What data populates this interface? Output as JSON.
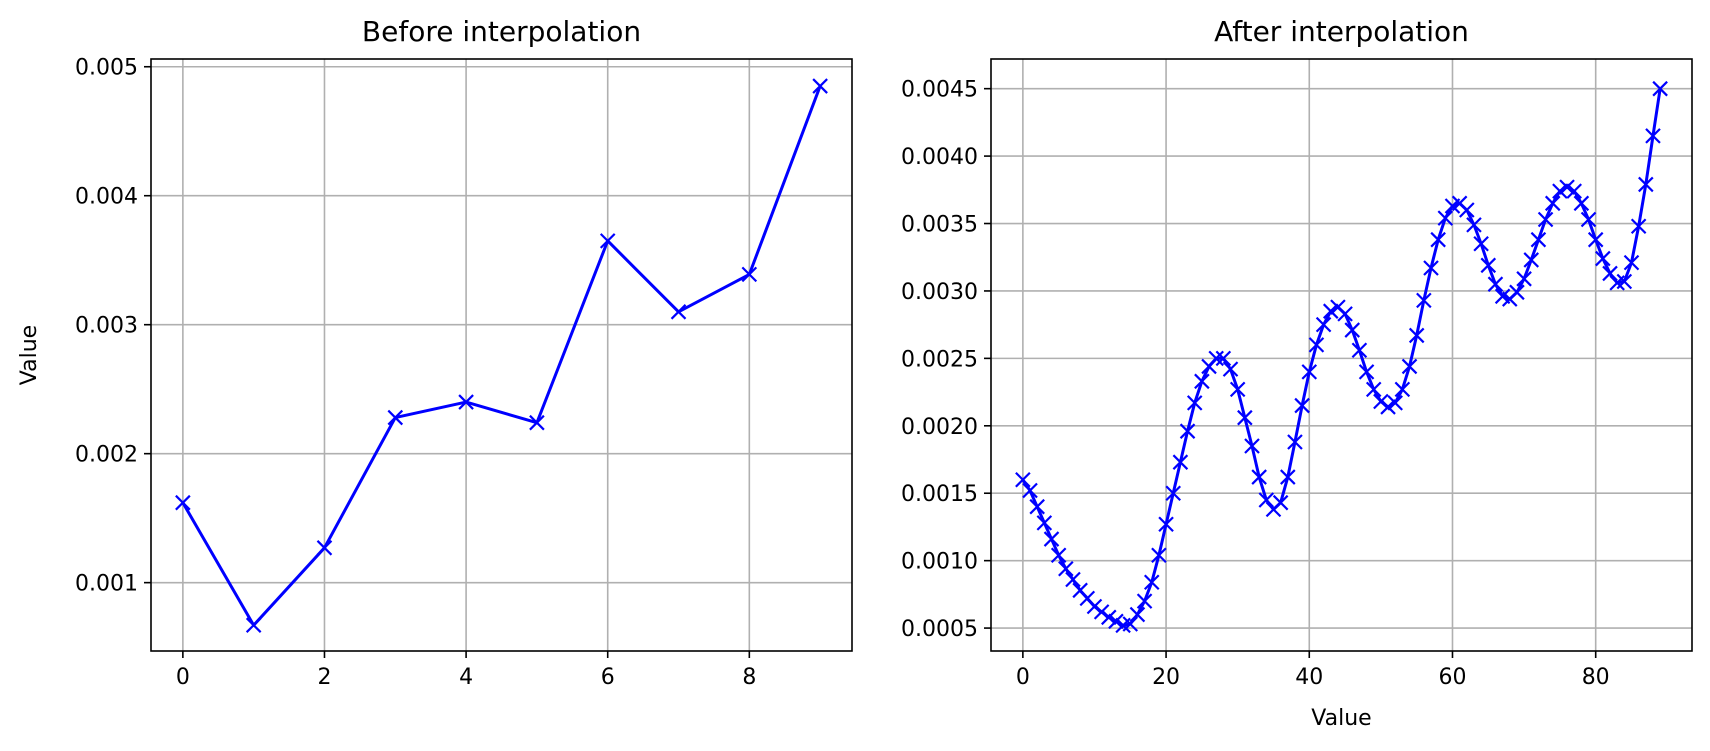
{
  "chart_data": [
    {
      "type": "line",
      "title": "Before interpolation",
      "xlabel": "",
      "ylabel": "Value",
      "xlim": [
        -0.45,
        9.45
      ],
      "ylim": [
        0.00047,
        0.00506
      ],
      "xticks": [
        0,
        2,
        4,
        6,
        8
      ],
      "xtick_labels": [
        "0",
        "2",
        "4",
        "6",
        "8"
      ],
      "yticks": [
        0.001,
        0.002,
        0.003,
        0.004,
        0.005
      ],
      "ytick_labels": [
        "0.001",
        "0.002",
        "0.003",
        "0.004",
        "0.005"
      ],
      "grid": true,
      "color": "#0000ff",
      "marker": "x",
      "x": [
        0,
        1,
        2,
        3,
        4,
        5,
        6,
        7,
        8,
        9
      ],
      "y": [
        0.00162,
        0.00067,
        0.00127,
        0.00228,
        0.0024,
        0.00224,
        0.00365,
        0.0031,
        0.00339,
        0.00485
      ]
    },
    {
      "type": "line",
      "title": "After interpolation",
      "xlabel": "Value",
      "ylabel": "",
      "xlim": [
        -4.45,
        93.45
      ],
      "ylim": [
        0.00033,
        0.00472
      ],
      "xticks": [
        0,
        20,
        40,
        60,
        80
      ],
      "xtick_labels": [
        "0",
        "20",
        "40",
        "60",
        "80"
      ],
      "yticks": [
        0.0005,
        0.001,
        0.0015,
        0.002,
        0.0025,
        0.003,
        0.0035,
        0.004,
        0.0045
      ],
      "ytick_labels": [
        "0.0005",
        "0.0010",
        "0.0015",
        "0.0020",
        "0.0025",
        "0.0030",
        "0.0035",
        "0.0040",
        "0.0045"
      ],
      "grid": true,
      "color": "#0000ff",
      "marker": "x",
      "x": [
        0,
        1,
        2,
        3,
        4,
        5,
        6,
        7,
        8,
        9,
        10,
        11,
        12,
        13,
        14,
        15,
        16,
        17,
        18,
        19,
        20,
        21,
        22,
        23,
        24,
        25,
        26,
        27,
        28,
        29,
        30,
        31,
        32,
        33,
        34,
        35,
        36,
        37,
        38,
        39,
        40,
        41,
        42,
        43,
        44,
        45,
        46,
        47,
        48,
        49,
        50,
        51,
        52,
        53,
        54,
        55,
        56,
        57,
        58,
        59,
        60,
        61,
        62,
        63,
        64,
        65,
        66,
        67,
        68,
        69,
        70,
        71,
        72,
        73,
        74,
        75,
        76,
        77,
        78,
        79,
        80,
        81,
        82,
        83,
        84,
        85,
        86,
        87,
        88,
        89
      ],
      "y": [
        0.0016,
        0.00152,
        0.0014,
        0.00128,
        0.00116,
        0.00104,
        0.00094,
        0.00086,
        0.00078,
        0.00072,
        0.00066,
        0.00062,
        0.00058,
        0.00055,
        0.00052,
        0.00053,
        0.0006,
        0.0007,
        0.00084,
        0.00104,
        0.00127,
        0.0015,
        0.00173,
        0.00196,
        0.00217,
        0.00233,
        0.00244,
        0.0025,
        0.0025,
        0.00242,
        0.00227,
        0.00206,
        0.00185,
        0.00162,
        0.00145,
        0.00138,
        0.00143,
        0.00162,
        0.00188,
        0.00215,
        0.0024,
        0.0026,
        0.00275,
        0.00285,
        0.00288,
        0.00283,
        0.00271,
        0.00256,
        0.0024,
        0.00227,
        0.00218,
        0.00214,
        0.00217,
        0.00227,
        0.00244,
        0.00267,
        0.00293,
        0.00317,
        0.00338,
        0.00354,
        0.00363,
        0.00365,
        0.0036,
        0.00349,
        0.00335,
        0.00319,
        0.00305,
        0.00296,
        0.00294,
        0.00299,
        0.00309,
        0.00323,
        0.00338,
        0.00353,
        0.00365,
        0.00374,
        0.00377,
        0.00374,
        0.00365,
        0.00353,
        0.00338,
        0.00324,
        0.00313,
        0.00306,
        0.00307,
        0.00321,
        0.00348,
        0.00379,
        0.00415,
        0.0045
      ]
    }
  ]
}
